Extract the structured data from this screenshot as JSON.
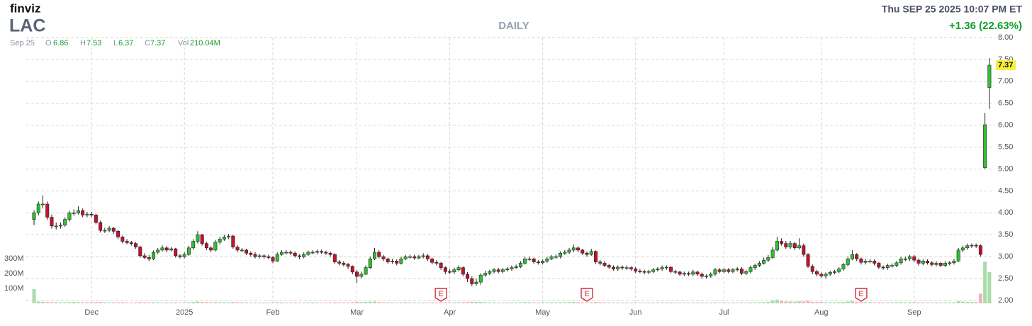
{
  "header": {
    "logo": "finviz",
    "ticker": "LAC",
    "timeframe": "DAILY",
    "datetime": "Thu SEP 25 2025 10:07 PM ET",
    "change": "+1.36 (22.63%)",
    "legend": {
      "date": "Sep 25",
      "items": [
        {
          "label": "O",
          "value": 6.86
        },
        {
          "label": "H",
          "value": 7.53
        },
        {
          "label": "L",
          "value": 6.37
        },
        {
          "label": "C",
          "value": 7.37
        },
        {
          "label": "Vol",
          "value": "210.04M"
        }
      ]
    }
  },
  "chart_data": {
    "type": "candlestick",
    "categories": [
      null,
      null,
      null,
      null,
      null,
      null,
      null,
      null,
      null,
      null,
      null,
      null,
      null,
      "Dec",
      null,
      null,
      null,
      null,
      null,
      null,
      null,
      null,
      null,
      null,
      null,
      null,
      null,
      null,
      null,
      null,
      null,
      null,
      null,
      null,
      "2025",
      null,
      null,
      null,
      null,
      null,
      null,
      null,
      null,
      null,
      null,
      null,
      null,
      null,
      null,
      null,
      null,
      null,
      null,
      null,
      "Feb",
      null,
      null,
      null,
      null,
      null,
      null,
      null,
      null,
      null,
      null,
      null,
      null,
      null,
      null,
      null,
      null,
      null,
      null,
      "Mar",
      null,
      null,
      null,
      null,
      null,
      null,
      null,
      null,
      null,
      null,
      null,
      null,
      null,
      null,
      null,
      null,
      null,
      null,
      null,
      null,
      "Apr",
      null,
      null,
      null,
      null,
      null,
      null,
      null,
      null,
      null,
      null,
      null,
      null,
      null,
      null,
      null,
      null,
      null,
      null,
      null,
      null,
      "May",
      null,
      null,
      null,
      null,
      null,
      null,
      null,
      null,
      null,
      null,
      null,
      null,
      null,
      null,
      null,
      null,
      null,
      null,
      null,
      null,
      "Jun",
      null,
      null,
      null,
      null,
      null,
      null,
      null,
      null,
      null,
      null,
      null,
      null,
      null,
      null,
      null,
      null,
      null,
      null,
      null,
      "Jul",
      null,
      null,
      null,
      null,
      null,
      null,
      null,
      null,
      null,
      null,
      null,
      null,
      null,
      null,
      null,
      null,
      null,
      null,
      null,
      null,
      null,
      "Aug",
      null,
      null,
      null,
      null,
      null,
      null,
      null,
      null,
      null,
      null,
      null,
      null,
      null,
      null,
      null,
      null,
      null,
      null,
      null,
      null,
      "Sep",
      null,
      null,
      null,
      null,
      null,
      null,
      null,
      null,
      null,
      null,
      null,
      null,
      null,
      null,
      null,
      null,
      null
    ],
    "open": [
      3.85,
      4.0,
      4.2,
      4.2,
      3.9,
      3.7,
      3.7,
      3.72,
      3.85,
      4.0,
      4.0,
      4.05,
      3.95,
      3.97,
      3.95,
      3.78,
      3.6,
      3.6,
      3.65,
      3.58,
      3.45,
      3.35,
      3.32,
      3.3,
      3.22,
      3.02,
      2.98,
      2.95,
      3.1,
      3.15,
      3.2,
      3.15,
      3.18,
      3.02,
      3.0,
      3.05,
      3.2,
      3.35,
      3.5,
      3.3,
      3.2,
      3.15,
      3.33,
      3.4,
      3.45,
      3.47,
      3.22,
      3.15,
      3.15,
      3.08,
      3.05,
      3.0,
      3.02,
      3.0,
      2.98,
      2.9,
      3.05,
      3.1,
      3.1,
      3.08,
      3.02,
      3.0,
      3.05,
      3.1,
      3.1,
      3.12,
      3.1,
      3.08,
      3.05,
      2.88,
      2.85,
      2.82,
      2.78,
      2.65,
      2.55,
      2.6,
      2.75,
      2.95,
      3.1,
      3.0,
      2.95,
      2.88,
      2.9,
      2.85,
      2.95,
      3.0,
      3.0,
      2.97,
      3.0,
      3.02,
      2.95,
      2.87,
      2.85,
      2.75,
      2.66,
      2.65,
      2.7,
      2.75,
      2.6,
      2.5,
      2.38,
      2.42,
      2.58,
      2.62,
      2.66,
      2.7,
      2.66,
      2.7,
      2.72,
      2.75,
      2.77,
      2.85,
      2.95,
      2.95,
      2.88,
      2.86,
      2.9,
      2.95,
      3.0,
      3.0,
      3.08,
      3.1,
      3.15,
      3.2,
      3.15,
      3.08,
      3.05,
      3.12,
      2.88,
      2.85,
      2.8,
      2.76,
      2.72,
      2.76,
      2.75,
      2.75,
      2.72,
      2.67,
      2.66,
      2.65,
      2.66,
      2.7,
      2.72,
      2.75,
      2.76,
      2.66,
      2.65,
      2.6,
      2.62,
      2.6,
      2.65,
      2.6,
      2.55,
      2.56,
      2.6,
      2.7,
      2.66,
      2.7,
      2.66,
      2.7,
      2.72,
      2.62,
      2.66,
      2.75,
      2.8,
      2.85,
      2.92,
      2.98,
      3.15,
      3.35,
      3.3,
      3.22,
      3.3,
      3.2,
      3.25,
      3.05,
      2.78,
      2.66,
      2.6,
      2.56,
      2.6,
      2.64,
      2.66,
      2.72,
      2.82,
      2.95,
      3.05,
      2.95,
      2.87,
      2.9,
      2.9,
      2.85,
      2.76,
      2.75,
      2.8,
      2.8,
      2.86,
      2.95,
      2.95,
      3.0,
      2.92,
      2.85,
      2.9,
      2.86,
      2.82,
      2.85,
      2.8,
      2.85,
      2.86,
      2.9,
      3.15,
      3.2,
      3.25,
      3.26,
      3.25,
      5.03,
      6.86
    ],
    "high": [
      4.06,
      4.26,
      4.4,
      4.26,
      3.96,
      3.78,
      3.78,
      3.9,
      4.05,
      4.08,
      4.15,
      4.1,
      4.02,
      4.02,
      3.98,
      3.82,
      3.66,
      3.7,
      3.68,
      3.62,
      3.48,
      3.4,
      3.36,
      3.34,
      3.25,
      3.08,
      3.04,
      3.14,
      3.2,
      3.26,
      3.24,
      3.22,
      3.2,
      3.06,
      3.1,
      3.25,
      3.4,
      3.58,
      3.52,
      3.34,
      3.24,
      3.38,
      3.45,
      3.5,
      3.52,
      3.5,
      3.26,
      3.2,
      3.18,
      3.12,
      3.1,
      3.06,
      3.06,
      3.04,
      3.02,
      3.1,
      3.15,
      3.15,
      3.14,
      3.12,
      3.06,
      3.1,
      3.14,
      3.15,
      3.16,
      3.16,
      3.14,
      3.12,
      3.08,
      2.92,
      2.9,
      2.86,
      2.8,
      2.7,
      2.66,
      2.8,
      3.0,
      3.2,
      3.15,
      3.04,
      2.98,
      2.95,
      2.94,
      3.0,
      3.04,
      3.05,
      3.04,
      3.04,
      3.08,
      3.06,
      2.98,
      2.92,
      2.88,
      2.78,
      2.72,
      2.75,
      2.8,
      2.78,
      2.65,
      2.55,
      2.5,
      2.62,
      2.68,
      2.7,
      2.74,
      2.74,
      2.74,
      2.76,
      2.8,
      2.82,
      2.9,
      3.0,
      3.0,
      2.98,
      2.92,
      2.94,
      3.0,
      3.04,
      3.05,
      3.12,
      3.15,
      3.2,
      3.28,
      3.24,
      3.18,
      3.12,
      3.18,
      3.14,
      2.92,
      2.9,
      2.84,
      2.8,
      2.8,
      2.8,
      2.8,
      2.78,
      2.76,
      2.72,
      2.7,
      2.7,
      2.74,
      2.76,
      2.8,
      2.8,
      2.78,
      2.7,
      2.68,
      2.66,
      2.66,
      2.7,
      2.68,
      2.64,
      2.6,
      2.64,
      2.74,
      2.74,
      2.74,
      2.74,
      2.74,
      2.76,
      2.76,
      2.7,
      2.8,
      2.84,
      2.9,
      2.98,
      3.04,
      3.22,
      3.45,
      3.42,
      3.36,
      3.36,
      3.34,
      3.42,
      3.3,
      3.08,
      2.82,
      2.7,
      2.64,
      2.64,
      2.68,
      2.7,
      2.76,
      2.86,
      3.0,
      3.15,
      3.08,
      2.98,
      2.95,
      2.95,
      2.94,
      2.88,
      2.8,
      2.84,
      2.85,
      2.9,
      3.0,
      3.0,
      3.04,
      3.04,
      2.96,
      2.94,
      2.94,
      2.9,
      2.9,
      2.88,
      2.9,
      2.9,
      2.95,
      3.2,
      3.25,
      3.3,
      3.3,
      3.3,
      3.28,
      6.28,
      7.53
    ],
    "low": [
      3.72,
      3.94,
      4.1,
      3.84,
      3.64,
      3.62,
      3.64,
      3.68,
      3.8,
      3.94,
      3.96,
      3.9,
      3.9,
      3.9,
      3.74,
      3.55,
      3.54,
      3.56,
      3.52,
      3.4,
      3.3,
      3.28,
      3.25,
      3.18,
      2.98,
      2.94,
      2.9,
      2.92,
      3.06,
      3.12,
      3.1,
      3.12,
      2.98,
      2.96,
      2.96,
      3.02,
      3.16,
      3.3,
      3.25,
      3.15,
      3.1,
      3.12,
      3.28,
      3.36,
      3.4,
      3.18,
      3.1,
      3.1,
      3.04,
      3.0,
      2.96,
      2.96,
      2.95,
      2.94,
      2.85,
      2.88,
      3.02,
      3.05,
      3.04,
      2.98,
      2.94,
      2.96,
      3.02,
      3.06,
      3.06,
      3.06,
      3.04,
      3.0,
      2.84,
      2.8,
      2.78,
      2.72,
      2.6,
      2.4,
      2.5,
      2.58,
      2.72,
      2.92,
      2.96,
      2.9,
      2.84,
      2.84,
      2.8,
      2.82,
      2.92,
      2.95,
      2.93,
      2.94,
      2.96,
      2.9,
      2.82,
      2.8,
      2.7,
      2.6,
      2.6,
      2.6,
      2.66,
      2.55,
      2.42,
      2.32,
      2.34,
      2.36,
      2.54,
      2.58,
      2.62,
      2.62,
      2.62,
      2.66,
      2.68,
      2.72,
      2.74,
      2.82,
      2.9,
      2.84,
      2.82,
      2.82,
      2.86,
      2.92,
      2.95,
      2.96,
      3.04,
      3.06,
      3.1,
      3.1,
      3.04,
      3.0,
      3.02,
      2.84,
      2.8,
      2.76,
      2.72,
      2.68,
      2.68,
      2.7,
      2.7,
      2.68,
      2.62,
      2.62,
      2.6,
      2.6,
      2.62,
      2.66,
      2.68,
      2.7,
      2.62,
      2.6,
      2.56,
      2.56,
      2.56,
      2.56,
      2.56,
      2.5,
      2.5,
      2.52,
      2.56,
      2.62,
      2.62,
      2.62,
      2.62,
      2.66,
      2.58,
      2.58,
      2.62,
      2.7,
      2.76,
      2.82,
      2.88,
      2.95,
      3.12,
      3.25,
      3.18,
      3.18,
      3.15,
      3.16,
      3.0,
      2.74,
      2.6,
      2.55,
      2.52,
      2.5,
      2.56,
      2.6,
      2.62,
      2.68,
      2.78,
      2.92,
      2.9,
      2.82,
      2.82,
      2.85,
      2.8,
      2.72,
      2.7,
      2.7,
      2.75,
      2.76,
      2.82,
      2.9,
      2.9,
      2.88,
      2.8,
      2.8,
      2.82,
      2.78,
      2.78,
      2.76,
      2.76,
      2.8,
      2.82,
      2.88,
      3.1,
      3.16,
      3.2,
      3.2,
      3.0,
      5.0,
      6.37
    ],
    "close": [
      4.0,
      4.2,
      4.2,
      3.9,
      3.7,
      3.7,
      3.72,
      3.85,
      4.0,
      4.0,
      4.05,
      3.95,
      3.97,
      3.95,
      3.78,
      3.6,
      3.6,
      3.65,
      3.58,
      3.45,
      3.35,
      3.32,
      3.3,
      3.22,
      3.02,
      2.98,
      2.95,
      3.1,
      3.15,
      3.2,
      3.15,
      3.18,
      3.02,
      3.0,
      3.05,
      3.2,
      3.35,
      3.5,
      3.3,
      3.2,
      3.15,
      3.33,
      3.4,
      3.45,
      3.47,
      3.22,
      3.15,
      3.15,
      3.08,
      3.05,
      3.0,
      3.02,
      3.0,
      2.98,
      2.9,
      3.05,
      3.1,
      3.1,
      3.08,
      3.02,
      3.0,
      3.05,
      3.1,
      3.1,
      3.12,
      3.1,
      3.08,
      3.05,
      2.88,
      2.85,
      2.82,
      2.78,
      2.65,
      2.55,
      2.6,
      2.75,
      2.95,
      3.1,
      3.0,
      2.95,
      2.88,
      2.9,
      2.85,
      2.95,
      3.0,
      3.0,
      2.97,
      3.0,
      3.02,
      2.95,
      2.87,
      2.85,
      2.75,
      2.66,
      2.65,
      2.7,
      2.75,
      2.6,
      2.5,
      2.38,
      2.42,
      2.58,
      2.62,
      2.66,
      2.7,
      2.66,
      2.7,
      2.72,
      2.75,
      2.77,
      2.85,
      2.95,
      2.95,
      2.88,
      2.86,
      2.9,
      2.95,
      3.0,
      3.0,
      3.08,
      3.1,
      3.15,
      3.2,
      3.15,
      3.08,
      3.05,
      3.12,
      2.88,
      2.85,
      2.8,
      2.76,
      2.72,
      2.76,
      2.75,
      2.75,
      2.72,
      2.67,
      2.66,
      2.65,
      2.66,
      2.7,
      2.72,
      2.75,
      2.76,
      2.66,
      2.65,
      2.6,
      2.62,
      2.6,
      2.65,
      2.6,
      2.55,
      2.56,
      2.6,
      2.7,
      2.66,
      2.7,
      2.66,
      2.7,
      2.72,
      2.62,
      2.66,
      2.75,
      2.8,
      2.85,
      2.92,
      2.98,
      3.15,
      3.35,
      3.3,
      3.22,
      3.3,
      3.2,
      3.25,
      3.05,
      2.78,
      2.66,
      2.6,
      2.56,
      2.6,
      2.64,
      2.66,
      2.72,
      2.82,
      2.95,
      3.05,
      2.95,
      2.87,
      2.9,
      2.9,
      2.85,
      2.76,
      2.75,
      2.8,
      2.8,
      2.86,
      2.95,
      2.95,
      3.0,
      2.92,
      2.85,
      2.9,
      2.86,
      2.82,
      2.85,
      2.8,
      2.85,
      2.86,
      2.9,
      3.15,
      3.2,
      3.25,
      3.26,
      3.25,
      3.05,
      6.01,
      7.37
    ],
    "volume": [
      95,
      12,
      10,
      9,
      8,
      8,
      7,
      7,
      8,
      9,
      7,
      8,
      7,
      7,
      8,
      9,
      7,
      6,
      6,
      7,
      8,
      6,
      5,
      6,
      8,
      7,
      6,
      7,
      6,
      5,
      6,
      5,
      6,
      5,
      6,
      7,
      9,
      12,
      9,
      7,
      6,
      8,
      7,
      7,
      6,
      9,
      7,
      6,
      6,
      5,
      5,
      5,
      6,
      5,
      6,
      7,
      6,
      5,
      5,
      6,
      5,
      5,
      6,
      6,
      5,
      5,
      5,
      5,
      7,
      6,
      6,
      6,
      8,
      10,
      8,
      9,
      11,
      12,
      8,
      7,
      6,
      6,
      5,
      6,
      7,
      6,
      5,
      5,
      6,
      5,
      6,
      5,
      6,
      7,
      6,
      6,
      7,
      8,
      9,
      11,
      10,
      9,
      7,
      6,
      6,
      5,
      5,
      5,
      6,
      6,
      7,
      8,
      7,
      6,
      6,
      6,
      6,
      7,
      6,
      7,
      7,
      8,
      9,
      7,
      6,
      6,
      7,
      9,
      7,
      6,
      6,
      5,
      5,
      5,
      5,
      5,
      5,
      5,
      5,
      5,
      5,
      5,
      6,
      5,
      6,
      5,
      5,
      5,
      5,
      5,
      5,
      6,
      5,
      5,
      6,
      5,
      5,
      5,
      5,
      5,
      6,
      5,
      6,
      6,
      7,
      8,
      10,
      18,
      25,
      15,
      12,
      12,
      11,
      14,
      13,
      16,
      10,
      9,
      8,
      7,
      7,
      7,
      8,
      9,
      12,
      15,
      10,
      8,
      7,
      7,
      6,
      7,
      6,
      6,
      6,
      7,
      8,
      7,
      7,
      7,
      6,
      6,
      6,
      6,
      6,
      5,
      6,
      6,
      7,
      14,
      11,
      10,
      9,
      8,
      65,
      280,
      210.04
    ],
    "ylim": [
      2,
      8
    ],
    "yticks": [
      {
        "value": 2,
        "label": "2.00"
      },
      {
        "value": 2.5,
        "label": "2.50"
      },
      {
        "value": 3,
        "label": "3.00"
      },
      {
        "value": 3.5,
        "label": "3.50"
      },
      {
        "value": 4,
        "label": "4.00"
      },
      {
        "value": 4.5,
        "label": "4.50"
      },
      {
        "value": 5,
        "label": "5.00"
      },
      {
        "value": 5.5,
        "label": "5.50"
      },
      {
        "value": 6,
        "label": "6.00"
      },
      {
        "value": 6.5,
        "label": "6.50"
      },
      {
        "value": 7,
        "label": "7.00"
      },
      {
        "value": 7.5,
        "label": "7.50"
      },
      {
        "value": 8,
        "label": "8.00"
      }
    ],
    "volume_ticks": [
      {
        "value": 100,
        "label": "100M"
      },
      {
        "value": 200,
        "label": "200M"
      },
      {
        "value": 300,
        "label": "300M"
      }
    ],
    "annotations": [
      {
        "text": "E",
        "x": 92
      },
      {
        "text": "E",
        "x": 125
      },
      {
        "text": "E",
        "x": 187
      }
    ],
    "grid": true,
    "up_color": "#2fc12f",
    "down_color": "#c8102e",
    "volume_up_color": "#a9dca9",
    "volume_down_color": "#f3b3bb",
    "last_price_color": "#f5f03c"
  }
}
